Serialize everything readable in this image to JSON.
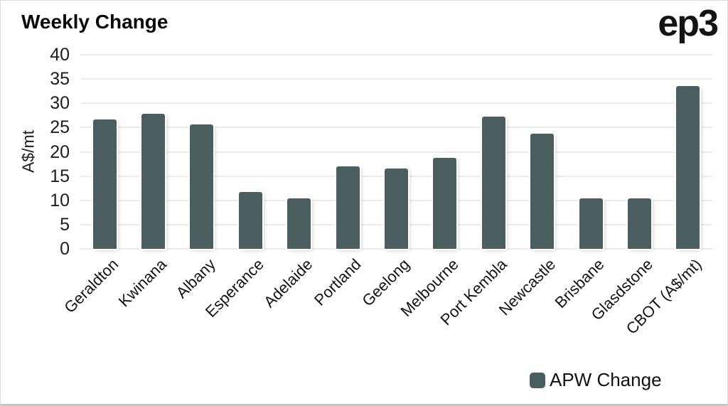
{
  "page": {
    "title": "Weekly Change",
    "logo": "ep3"
  },
  "chart_data": {
    "type": "bar",
    "title": "Weekly Change",
    "categories": [
      "Geraldton",
      "Kwinana",
      "Albany",
      "Esperance",
      "Adelaide",
      "Portland",
      "Geelong",
      "Melbourne",
      "Port Kembla",
      "Newcastle",
      "Brisbane",
      "Glasdstone",
      "CBOT (A$/mt)"
    ],
    "series": [
      {
        "name": "APW Change",
        "values": [
          26.7,
          27.8,
          25.7,
          11.7,
          10.4,
          17.0,
          16.5,
          18.7,
          27.3,
          23.7,
          10.4,
          10.4,
          33.6
        ]
      }
    ],
    "xlabel": "",
    "ylabel": "A$/mt",
    "ylim": [
      0,
      40
    ],
    "ytick_step": 5,
    "yticks": [
      0,
      5,
      10,
      15,
      20,
      25,
      30,
      35,
      40
    ],
    "grid": "horizontal",
    "legend": {
      "label": "APW Change",
      "position": "bottom-right"
    },
    "colors": {
      "bar": "#4a5d5f",
      "gridline": "#ebebeb",
      "text": "#1e1e1e"
    }
  }
}
